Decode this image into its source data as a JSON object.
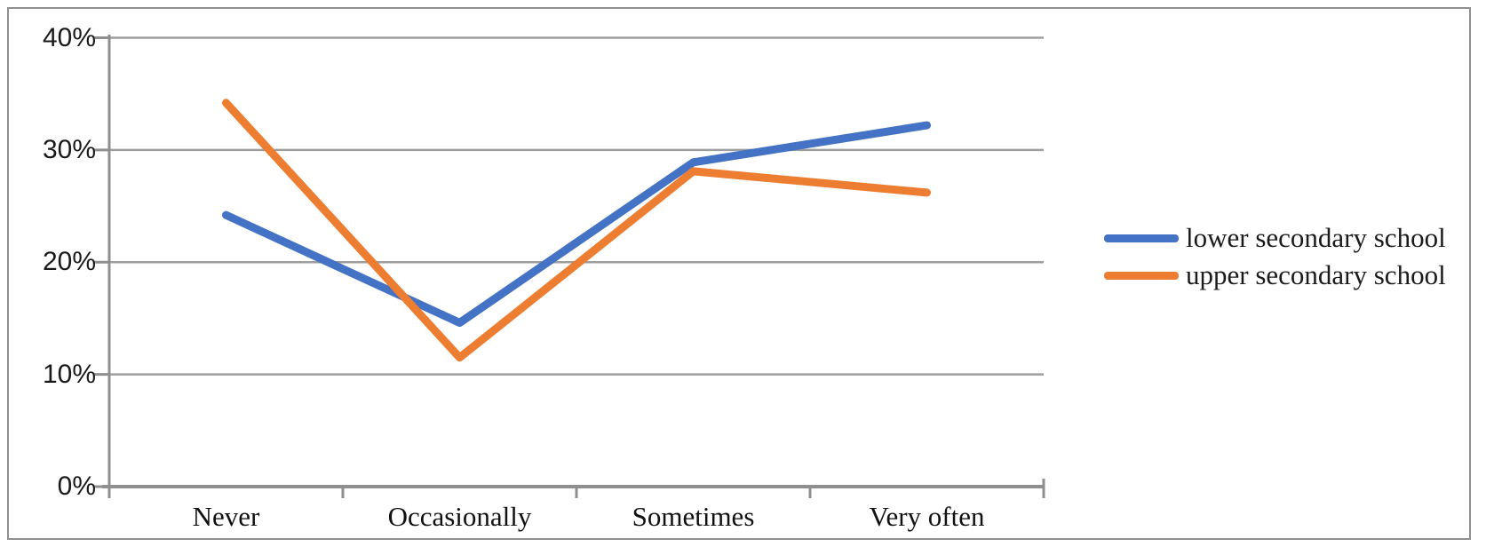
{
  "figure": {
    "background_color": "#ffffff",
    "border_color": "#8f8f8f"
  },
  "chart_data": {
    "type": "line",
    "title": "",
    "xlabel": "",
    "ylabel": "",
    "categories": [
      "Never",
      "Occasionally",
      "Sometimes",
      "Very often"
    ],
    "series": [
      {
        "name": "lower secondary school",
        "color": "#4472C4",
        "values": [
          24.2,
          14.6,
          28.9,
          32.2
        ]
      },
      {
        "name": "upper secondary school",
        "color": "#ED7D31",
        "values": [
          34.2,
          11.5,
          28.1,
          26.2
        ]
      }
    ],
    "ylim": [
      0,
      40
    ],
    "y_ticks": [
      {
        "value": 0,
        "label": "0%"
      },
      {
        "value": 10,
        "label": "10%"
      },
      {
        "value": 20,
        "label": "20%"
      },
      {
        "value": 30,
        "label": "30%"
      },
      {
        "value": 40,
        "label": "40%"
      }
    ],
    "grid": true,
    "gridline_color": "#9e9e9e",
    "axis_color": "#8f8f8f",
    "legend_position": "right"
  }
}
